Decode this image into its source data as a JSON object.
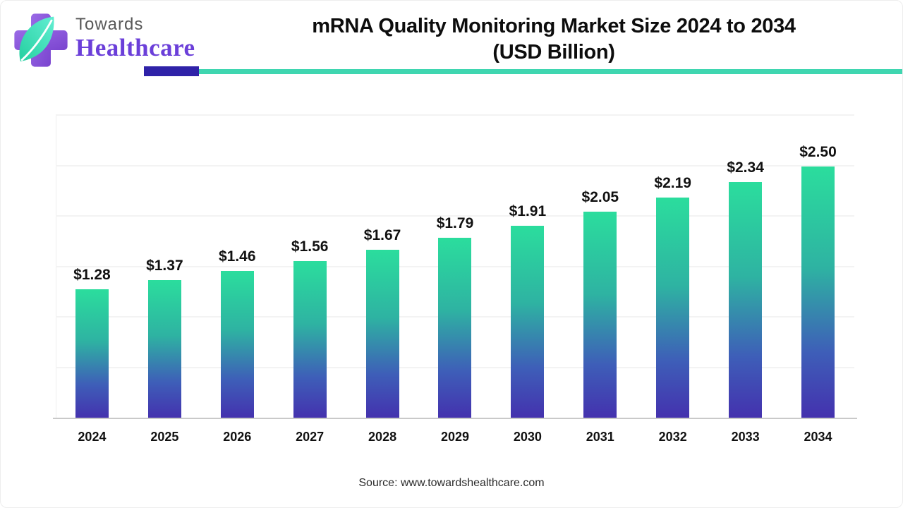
{
  "brand": {
    "name_top": "Towards",
    "name_bottom": "Healthcare",
    "logo_icon": "cross-with-leaf-icon",
    "colors": {
      "cross_purple": "#8a5bd6",
      "leaf_mint": "#3be0b4",
      "name_purple": "#6b3fd9",
      "name_gray": "#585858"
    }
  },
  "header": {
    "rule_indigo_color": "#2f22a8",
    "rule_teal_color": "#3fd6b0"
  },
  "title": {
    "line1": "mRNA Quality Monitoring Market Size 2024 to 2034",
    "line2": "(USD Billion)"
  },
  "chart_data": {
    "type": "bar",
    "title": "mRNA Quality Monitoring Market Size 2024 to 2034 (USD Billion)",
    "categories": [
      "2024",
      "2025",
      "2026",
      "2027",
      "2028",
      "2029",
      "2030",
      "2031",
      "2032",
      "2033",
      "2034"
    ],
    "values": [
      1.28,
      1.37,
      1.46,
      1.56,
      1.67,
      1.79,
      1.91,
      2.05,
      2.19,
      2.34,
      2.5
    ],
    "value_labels": [
      "$1.28",
      "$1.37",
      "$1.46",
      "$1.56",
      "$1.67",
      "$1.79",
      "$1.91",
      "$2.05",
      "$2.19",
      "$2.34",
      "$2.50"
    ],
    "xlabel": "",
    "ylabel": "",
    "ylim": [
      0,
      3.0
    ],
    "gridline_step": 0.5,
    "grid": true,
    "legend": "none",
    "bar_gradient_top": "#2bdd9d",
    "bar_gradient_mid": "#2eb3a2",
    "bar_gradient_bottom": "#4431ae"
  },
  "footer": {
    "source_text": "Source: www.towardshealthcare.com"
  }
}
